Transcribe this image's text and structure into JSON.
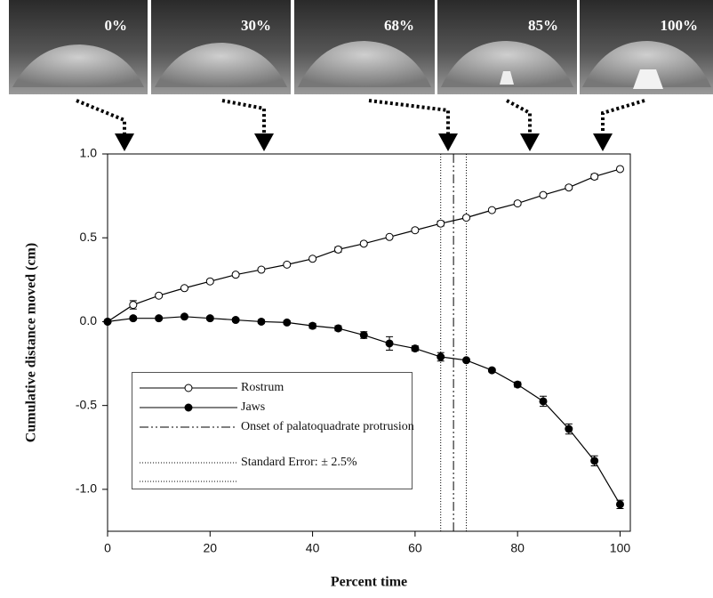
{
  "chart_data": {
    "type": "line",
    "photo_labels": [
      "0%",
      "30%",
      "68%",
      "85%",
      "100%"
    ],
    "xlabel": "Percent time",
    "ylabel": "Cumulative distance moved (cm)",
    "x": [
      0,
      5,
      10,
      15,
      20,
      25,
      30,
      35,
      40,
      45,
      50,
      55,
      60,
      65,
      70,
      75,
      80,
      85,
      90,
      95,
      100
    ],
    "series": [
      {
        "name": "Rostrum",
        "color": "#000000",
        "marker": "open",
        "values": [
          0.0,
          0.1,
          0.155,
          0.2,
          0.24,
          0.28,
          0.31,
          0.34,
          0.375,
          0.43,
          0.465,
          0.505,
          0.545,
          0.585,
          0.62,
          0.665,
          0.705,
          0.755,
          0.8,
          0.865,
          0.91
        ],
        "errors": [
          0,
          0.025,
          0.01,
          0.01,
          0.01,
          0.01,
          0.01,
          0.01,
          0.01,
          0.015,
          0.01,
          0.01,
          0.01,
          0.015,
          0.01,
          0.01,
          0.01,
          0.01,
          0.01,
          0.015,
          0.01
        ]
      },
      {
        "name": "Jaws",
        "color": "#000000",
        "marker": "filled",
        "values": [
          0.0,
          0.02,
          0.02,
          0.03,
          0.02,
          0.01,
          0.0,
          -0.005,
          -0.025,
          -0.04,
          -0.08,
          -0.13,
          -0.16,
          -0.21,
          -0.23,
          -0.29,
          -0.375,
          -0.475,
          -0.64,
          -0.83,
          -1.09
        ],
        "errors": [
          0,
          0.01,
          0.01,
          0.01,
          0.01,
          0.01,
          0.01,
          0.01,
          0.015,
          0.015,
          0.02,
          0.04,
          0.015,
          0.025,
          0.01,
          0.01,
          0.015,
          0.03,
          0.03,
          0.03,
          0.025
        ]
      }
    ],
    "reference_lines": [
      {
        "name": "Onset of palatoquadrate protrusion",
        "style": "dashdot",
        "x": [
          67.5
        ]
      },
      {
        "name": "Standard Error: ± 2.5%",
        "style": "dotted",
        "x": [
          65,
          70
        ]
      }
    ],
    "xlim": [
      0,
      102
    ],
    "ylim": [
      -1.25,
      1.0
    ],
    "xticks": [
      0,
      20,
      40,
      60,
      80,
      100
    ],
    "yticks": [
      {
        "value": 1.0,
        "label": "1.0"
      },
      0.5,
      {
        "value": 0.0,
        "label": "0.0"
      },
      -0.5,
      {
        "value": -1.0,
        "label": "-1.0"
      }
    ]
  }
}
